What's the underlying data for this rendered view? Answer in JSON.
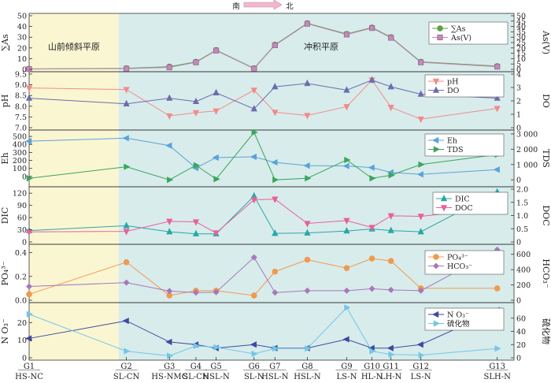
{
  "header": {
    "south": "南",
    "north": "北"
  },
  "regions": [
    {
      "label": "山前倾斜平原",
      "x_start": 0,
      "x_end": 1,
      "color": "#fbf6d2"
    },
    {
      "label": "冲积平原",
      "x_start": 1,
      "x_end": 13,
      "color": "#d8ecec"
    }
  ],
  "chart_data": {
    "type": "line",
    "categories": [
      "G1",
      "G2",
      "G3",
      "G4",
      "G5",
      "G6",
      "G7",
      "G8",
      "G9",
      "G10",
      "G11",
      "G12",
      "G13"
    ],
    "sublabels": [
      "HS-NC",
      "SL-CN",
      "HS-NMC",
      "SL-CN",
      "HSL-N",
      "SL-N",
      "HSL-N",
      "HSL-N",
      "LS-N",
      "HL-N",
      "LH-N",
      "LS-N",
      "SLH-N"
    ],
    "x_positions": [
      0,
      4,
      5.77,
      6.86,
      7.69,
      9.25,
      10.11,
      11.44,
      13.06,
      14.1,
      14.88,
      16.11,
      19.25
    ],
    "panels": [
      {
        "left": {
          "label": "∑As",
          "ylim": [
            0,
            50
          ],
          "ticks": [
            0,
            10,
            20,
            30,
            40,
            50
          ]
        },
        "right": {
          "label": "As(V)",
          "ylim": [
            0,
            50
          ],
          "ticks": [
            0,
            5,
            10,
            15,
            20,
            25,
            30,
            35,
            40,
            45,
            50
          ]
        },
        "series": [
          {
            "name": "∑As",
            "axis": "left",
            "color": "#5fa044",
            "marker": "circle",
            "values": [
              0.5,
              1,
              2.5,
              7,
              18,
              1,
              23,
              43,
              33,
              39,
              30,
              7,
              3
            ]
          },
          {
            "name": "As(V)",
            "axis": "right",
            "color": "#c389b7",
            "marker": "square",
            "values": [
              0.3,
              0.6,
              1.8,
              6.5,
              17.5,
              0.6,
              22.5,
              42.5,
              32.5,
              38.5,
              29.5,
              6.5,
              2.5
            ]
          }
        ]
      },
      {
        "left": {
          "label": "pH",
          "ylim": [
            7.0,
            9.5
          ],
          "ticks": [
            "7.0",
            "7.5",
            "8.0",
            "8.5",
            "9.0",
            "9.5"
          ]
        },
        "right": {
          "label": "DO",
          "ylim": [
            0,
            4
          ],
          "ticks": [
            0,
            1,
            2,
            3,
            4
          ]
        },
        "series": [
          {
            "name": "pH",
            "axis": "left",
            "color": "#f28b8b",
            "marker": "tri-down",
            "values": [
              8.85,
              8.78,
              7.55,
              7.7,
              7.78,
              8.75,
              7.72,
              7.57,
              7.98,
              9.22,
              7.95,
              7.4,
              7.9
            ]
          },
          {
            "name": "DO",
            "axis": "right",
            "color": "#6c6cad",
            "marker": "tri-up",
            "values": [
              2.2,
              1.78,
              2.2,
              1.95,
              2.6,
              1.4,
              3.05,
              3.3,
              2.8,
              3.55,
              3.05,
              2.5,
              2.2
            ]
          }
        ]
      },
      {
        "left": {
          "label": "Eh",
          "ylim": [
            -100,
            550
          ],
          "ticks": [
            0,
            100,
            200,
            300,
            400,
            500
          ]
        },
        "right": {
          "label": "TDS",
          "ylim": [
            -300,
            3100
          ],
          "ticks": [
            "0",
            "1 000",
            "2 000",
            "3 000"
          ]
        },
        "series": [
          {
            "name": "Eh",
            "axis": "left",
            "color": "#5ba3d6",
            "marker": "tri-left",
            "values": [
              440,
              478,
              385,
              105,
              235,
              245,
              175,
              135,
              130,
              110,
              50,
              25,
              85
            ]
          },
          {
            "name": "TDS",
            "axis": "right",
            "color": "#3aa65a",
            "marker": "tri-right",
            "values": [
              100,
              850,
              0,
              950,
              50,
              3100,
              0,
              100,
              1300,
              100,
              300,
              1000,
              1650
            ]
          }
        ]
      },
      {
        "left": {
          "label": "DIC",
          "ylim": [
            0,
            130
          ],
          "ticks": [
            0,
            30,
            60,
            90,
            120
          ]
        },
        "right": {
          "label": "DOC",
          "ylim": [
            0,
            2.0
          ],
          "ticks": [
            "0",
            "0.5",
            "1.0",
            "1.5",
            "2.0"
          ]
        },
        "series": [
          {
            "name": "DIC",
            "axis": "left",
            "color": "#2aa6a6",
            "marker": "tri-up",
            "values": [
              28,
              40,
              25,
              20,
              20,
              113,
              21,
              22,
              27,
              32,
              28,
              25,
              123
            ]
          },
          {
            "name": "DOC",
            "axis": "right",
            "color": "#e8609a",
            "marker": "tri-down",
            "values": [
              0.38,
              0.4,
              0.78,
              0.76,
              0.34,
              1.6,
              1.62,
              0.7,
              0.81,
              0.55,
              0.99,
              0.97,
              1.28
            ]
          }
        ]
      },
      {
        "left": {
          "label": "PO₄³⁻",
          "ylim": [
            0,
            0.45
          ],
          "ticks": [
            "0.0",
            "0.2",
            "0.4"
          ]
        },
        "right": {
          "label": "HCO₃⁻",
          "ylim": [
            0,
            700
          ],
          "ticks": [
            0,
            200,
            400,
            600
          ]
        },
        "series": [
          {
            "name": "PO₄³⁻",
            "axis": "left",
            "color": "#f09a50",
            "marker": "circle",
            "values": [
              0.05,
              0.32,
              0.04,
              0.08,
              0.08,
              0.04,
              0.24,
              0.34,
              0.27,
              0.35,
              0.33,
              0.1,
              0.1
            ]
          },
          {
            "name": "HCO₃⁻",
            "axis": "right",
            "color": "#a779b8",
            "marker": "diamond",
            "values": [
              180,
              230,
              120,
              100,
              105,
              560,
              100,
              125,
              125,
              150,
              135,
              125,
              660
            ]
          }
        ]
      },
      {
        "left": {
          "label": "N O₃⁻",
          "ylim": [
            0,
            30
          ],
          "ticks": [
            0,
            10,
            20
          ]
        },
        "right": {
          "label": "硫化物",
          "ylim": [
            0,
            80
          ],
          "ticks": [
            0,
            20,
            40,
            60
          ]
        },
        "series": [
          {
            "name": "N O₃⁻",
            "axis": "left",
            "color": "#3f4a9e",
            "marker": "tri-left",
            "values": [
              11,
              21,
              9,
              7.5,
              5.5,
              7.5,
              5.5,
              5.5,
              10.5,
              5.5,
              5.5,
              7.5,
              27
            ]
          },
          {
            "name": "硫化物",
            "axis": "right",
            "color": "#72c7e6",
            "marker": "tri-right",
            "values": [
              66,
              10,
              3,
              18,
              16,
              6,
              14,
              14,
              76,
              10,
              5,
              4,
              14
            ]
          }
        ]
      }
    ]
  }
}
